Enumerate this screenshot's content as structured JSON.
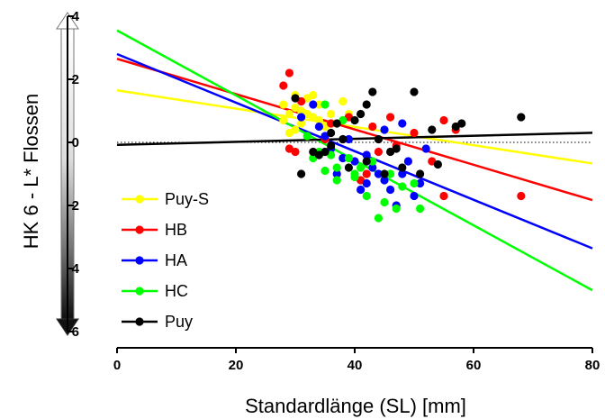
{
  "chart_data": {
    "type": "scatter",
    "title": "",
    "xlabel": "Standardlänge (SL) [mm]",
    "ylabel": "HK 6 - L* Flossen",
    "xlim": [
      0,
      80
    ],
    "ylim": [
      -6,
      4
    ],
    "xticks": [
      0,
      20,
      40,
      60,
      80
    ],
    "yticks": [
      -6,
      -4,
      -2,
      0,
      2,
      4
    ],
    "ytick_labels": [
      "6",
      "4",
      "2",
      "0",
      "2",
      "4"
    ],
    "reference_line": {
      "y": 0,
      "style": "dotted"
    },
    "legend_position": "bottom-left",
    "series": [
      {
        "name": "Puy-S",
        "color": "#ffff00",
        "regression": {
          "intercept": 1.65,
          "slope": -0.029
        },
        "points": [
          [
            28,
            1.2
          ],
          [
            29,
            0.3
          ],
          [
            30,
            1.5
          ],
          [
            31,
            1.0
          ],
          [
            32,
            1.4
          ],
          [
            33,
            0.8
          ],
          [
            34,
            1.2
          ],
          [
            35,
            0.5
          ],
          [
            36,
            0.6
          ],
          [
            38,
            1.3
          ],
          [
            39,
            0.9
          ],
          [
            30,
            1.1
          ],
          [
            32,
            0.9
          ],
          [
            34,
            0.7
          ],
          [
            29,
            0.9
          ],
          [
            31,
            0.6
          ],
          [
            33,
            1.5
          ],
          [
            36,
            0.9
          ],
          [
            28,
            0.7
          ],
          [
            30,
            0.4
          ]
        ]
      },
      {
        "name": "HB",
        "color": "#ff0000",
        "regression": {
          "intercept": 2.65,
          "slope": -0.056
        },
        "points": [
          [
            28,
            1.8
          ],
          [
            29,
            2.2
          ],
          [
            29,
            -0.2
          ],
          [
            30,
            -0.3
          ],
          [
            31,
            1.3
          ],
          [
            35,
            0.1
          ],
          [
            36,
            0.6
          ],
          [
            39,
            0.8
          ],
          [
            41,
            -1.2
          ],
          [
            42,
            -1.0
          ],
          [
            43,
            0.5
          ],
          [
            46,
            0.8
          ],
          [
            47,
            -0.1
          ],
          [
            50,
            0.3
          ],
          [
            53,
            -0.6
          ],
          [
            55,
            -1.7
          ],
          [
            55,
            0.7
          ],
          [
            57,
            0.4
          ],
          [
            68,
            -1.7
          ],
          [
            44,
            -0.3
          ]
        ]
      },
      {
        "name": "HA",
        "color": "#0000ff",
        "regression": {
          "intercept": 2.8,
          "slope": -0.077
        },
        "points": [
          [
            31,
            0.8
          ],
          [
            33,
            1.2
          ],
          [
            34,
            0.5
          ],
          [
            35,
            0.2
          ],
          [
            36,
            -0.2
          ],
          [
            37,
            -1.0
          ],
          [
            38,
            -0.5
          ],
          [
            39,
            0.1
          ],
          [
            40,
            -0.6
          ],
          [
            41,
            -1.5
          ],
          [
            42,
            -1.3
          ],
          [
            43,
            -0.8
          ],
          [
            44,
            -1.0
          ],
          [
            45,
            -1.2
          ],
          [
            46,
            -1.5
          ],
          [
            47,
            -2.0
          ],
          [
            48,
            -1.0
          ],
          [
            49,
            -0.6
          ],
          [
            50,
            -1.7
          ],
          [
            51,
            -1.3
          ],
          [
            52,
            -0.2
          ],
          [
            45,
            0.4
          ],
          [
            42,
            -0.4
          ],
          [
            48,
            0.6
          ]
        ]
      },
      {
        "name": "HC",
        "color": "#00ff00",
        "regression": {
          "intercept": 3.55,
          "slope": -0.103
        },
        "points": [
          [
            32,
            0.2
          ],
          [
            33,
            -0.5
          ],
          [
            34,
            -0.3
          ],
          [
            35,
            -0.9
          ],
          [
            36,
            -0.4
          ],
          [
            37,
            -1.2
          ],
          [
            38,
            0.7
          ],
          [
            39,
            -0.5
          ],
          [
            40,
            -1.1
          ],
          [
            41,
            -0.8
          ],
          [
            42,
            -1.7
          ],
          [
            43,
            -0.6
          ],
          [
            44,
            -2.4
          ],
          [
            45,
            -1.9
          ],
          [
            46,
            -1.0
          ],
          [
            47,
            -2.1
          ],
          [
            48,
            -1.4
          ],
          [
            50,
            -1.3
          ],
          [
            51,
            -2.1
          ],
          [
            35,
            1.2
          ],
          [
            37,
            -0.8
          ],
          [
            40,
            -1.0
          ]
        ]
      },
      {
        "name": "Puy",
        "color": "#000000",
        "regression": {
          "intercept": -0.08,
          "slope": 0.0048
        },
        "points": [
          [
            30,
            1.4
          ],
          [
            31,
            -1.0
          ],
          [
            33,
            -0.3
          ],
          [
            34,
            -0.4
          ],
          [
            35,
            -0.3
          ],
          [
            36,
            0.3
          ],
          [
            37,
            0.6
          ],
          [
            38,
            0.1
          ],
          [
            39,
            -0.8
          ],
          [
            40,
            0.7
          ],
          [
            41,
            0.9
          ],
          [
            42,
            1.2
          ],
          [
            43,
            1.6
          ],
          [
            44,
            0.1
          ],
          [
            45,
            -1.0
          ],
          [
            46,
            -0.3
          ],
          [
            47,
            -0.2
          ],
          [
            48,
            -0.8
          ],
          [
            50,
            1.6
          ],
          [
            51,
            -1.0
          ],
          [
            53,
            0.4
          ],
          [
            54,
            -0.7
          ],
          [
            57,
            0.5
          ],
          [
            58,
            0.6
          ],
          [
            68,
            0.8
          ],
          [
            36,
            -0.1
          ],
          [
            42,
            -0.6
          ]
        ]
      }
    ]
  }
}
